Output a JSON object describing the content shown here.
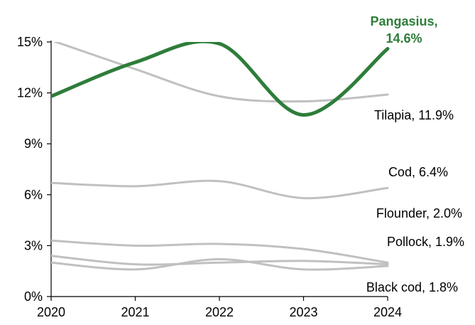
{
  "chart_data": {
    "type": "line",
    "title": "",
    "xlabel": "",
    "ylabel": "",
    "x": [
      "2020",
      "2021",
      "2022",
      "2023",
      "2024"
    ],
    "ylim": [
      0,
      15
    ],
    "yticks": [
      "0%",
      "3%",
      "6%",
      "9%",
      "12%",
      "15%"
    ],
    "ytick_values": [
      0,
      3,
      6,
      9,
      12,
      15
    ],
    "grid": false,
    "series": [
      {
        "key": "tilapia",
        "values": [
          15.1,
          13.4,
          11.8,
          11.5,
          11.9
        ],
        "label": "Tilapia, 11.9%",
        "color": "#c0c0c0",
        "highlight": false
      },
      {
        "key": "cod",
        "values": [
          6.7,
          6.5,
          6.8,
          5.8,
          6.4
        ],
        "label": "Cod, 6.4%",
        "color": "#c0c0c0",
        "highlight": false
      },
      {
        "key": "flounder",
        "values": [
          3.3,
          3.0,
          3.1,
          2.8,
          2.0
        ],
        "label": "Flounder, 2.0%",
        "color": "#c0c0c0",
        "highlight": false
      },
      {
        "key": "pollock",
        "values": [
          2.4,
          1.9,
          2.0,
          2.1,
          1.9
        ],
        "label": "Pollock, 1.9%",
        "color": "#c0c0c0",
        "highlight": false
      },
      {
        "key": "black-cod",
        "values": [
          2.0,
          1.6,
          2.2,
          1.6,
          1.8
        ],
        "label": "Black cod, 1.8%",
        "color": "#c0c0c0",
        "highlight": false
      },
      {
        "key": "pangasius",
        "values": [
          11.8,
          13.8,
          14.9,
          10.7,
          14.6
        ],
        "label_lines": [
          "Pangasius,",
          "14.6%"
        ],
        "color": "#2e7d3a",
        "highlight": true
      }
    ]
  }
}
